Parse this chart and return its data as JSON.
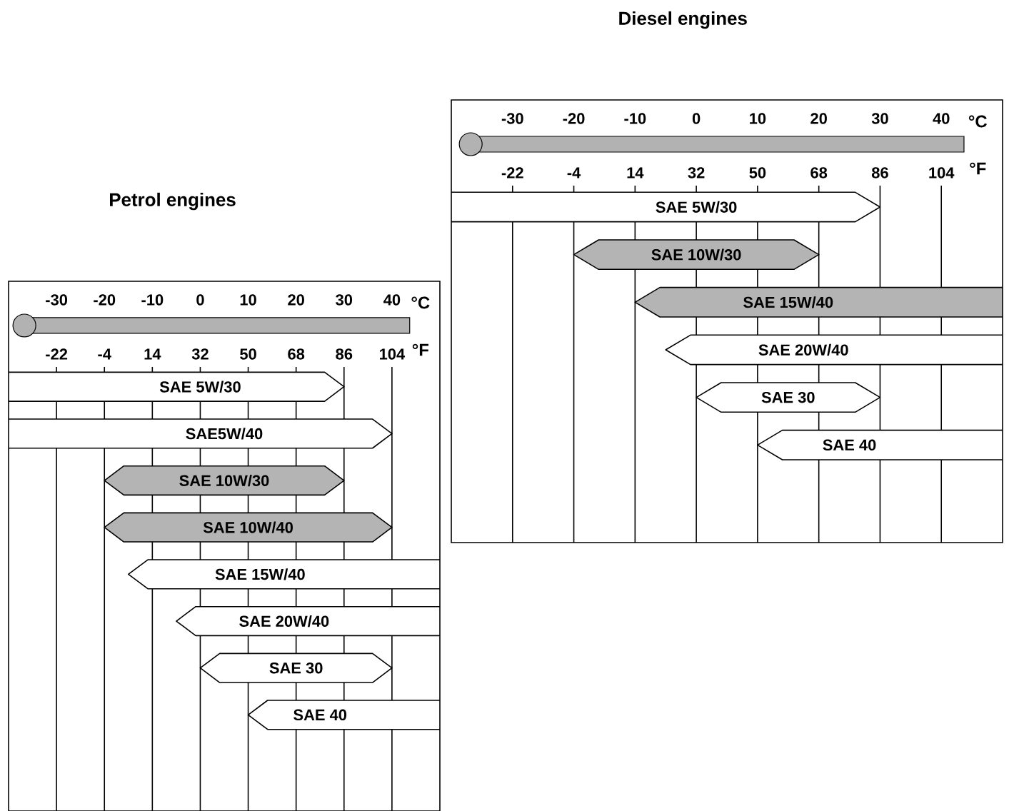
{
  "chart_data": [
    {
      "type": "bar",
      "orientation": "horizontal",
      "title": "Petrol engines",
      "xlabel": "°C",
      "x2label": "°F",
      "categories": [
        "SAE 5W/30",
        "SAE5W/40",
        "SAE 10W/30",
        "SAE 10W/40",
        "SAE 15W/40",
        "SAE 20W/40",
        "SAE 30",
        "SAE 40"
      ],
      "base": [
        -40,
        -40,
        -20,
        -20,
        -15,
        -5,
        0,
        10
      ],
      "values": [
        70,
        80,
        50,
        60,
        65,
        55,
        40,
        40
      ],
      "colors": [
        "#ffffff",
        "#ffffff",
        "#b4b4b4",
        "#b4b4b4",
        "#ffffff",
        "#ffffff",
        "#ffffff",
        "#ffffff"
      ],
      "xlim": [
        -40,
        50
      ],
      "xticks": [
        -30,
        -20,
        -10,
        0,
        10,
        20,
        30,
        40
      ],
      "x2lim": [
        -40,
        122
      ],
      "x2ticks": [
        -22,
        -4,
        14,
        32,
        50,
        68,
        86,
        104
      ],
      "grid": "x"
    },
    {
      "type": "bar",
      "orientation": "horizontal",
      "title": "Diesel engines",
      "xlabel": "°C",
      "x2label": "°F",
      "categories": [
        "SAE 5W/30",
        "SAE 10W/30",
        "SAE 15W/40",
        "SAE 20W/40",
        "SAE 30",
        "SAE 40"
      ],
      "base": [
        -40,
        -20,
        -10,
        -5,
        0,
        10
      ],
      "values": [
        70,
        40,
        60,
        55,
        30,
        40
      ],
      "colors": [
        "#ffffff",
        "#b4b4b4",
        "#b4b4b4",
        "#ffffff",
        "#ffffff",
        "#ffffff"
      ],
      "xlim": [
        -40,
        50
      ],
      "xticks": [
        -30,
        -20,
        -10,
        0,
        10,
        20,
        30,
        40
      ],
      "x2lim": [
        -40,
        122
      ],
      "x2ticks": [
        -22,
        -4,
        14,
        32,
        50,
        68,
        86,
        104
      ],
      "grid": "x"
    }
  ]
}
